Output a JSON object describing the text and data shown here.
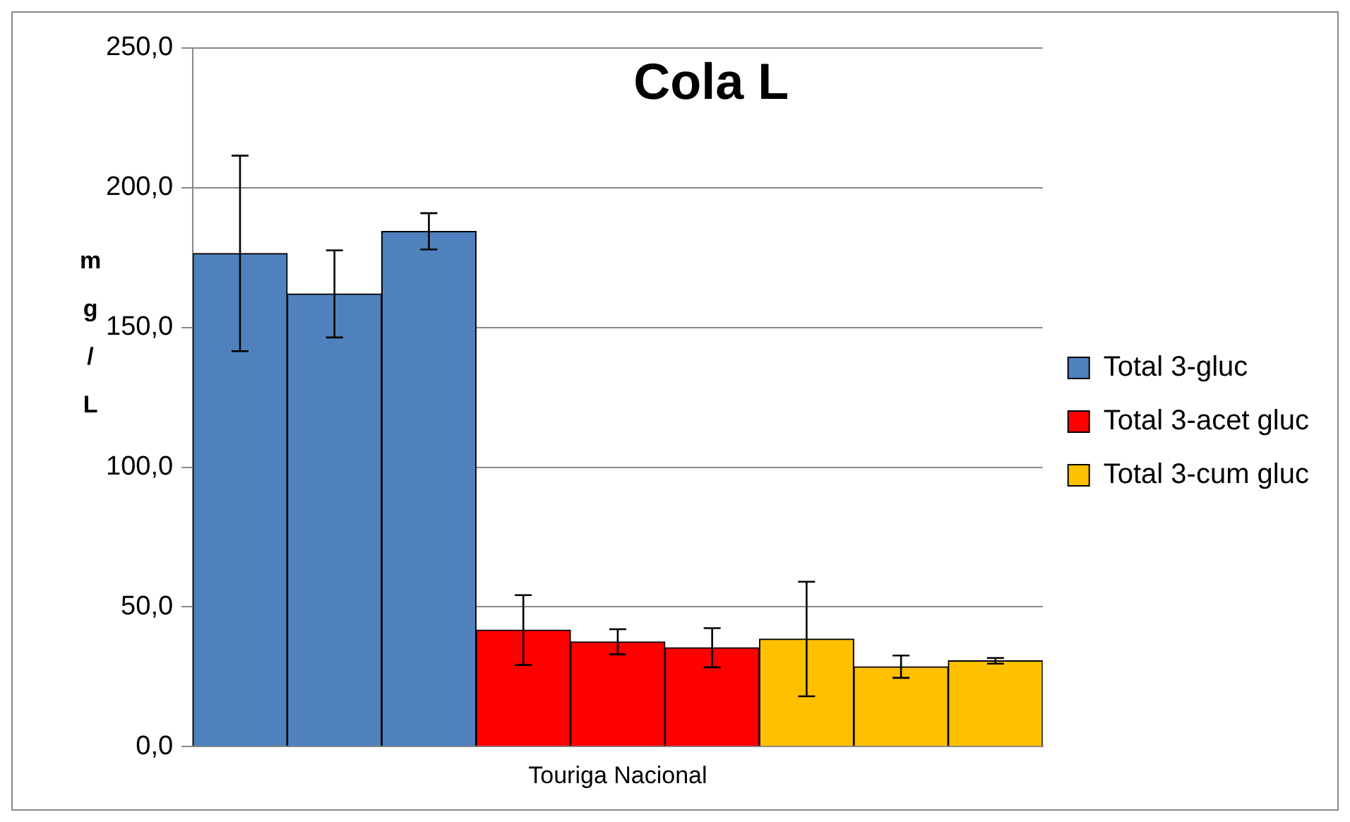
{
  "chart_data": {
    "type": "bar",
    "title": "Cola L",
    "ylabel": "mg/L",
    "categories": [
      null,
      null,
      null,
      null,
      "Touriga Nacional",
      null,
      null,
      null,
      null
    ],
    "stacked": true,
    "series": [
      {
        "name": "Total 3-gluc",
        "color": "#4f81bd",
        "values": [
          176.5,
          162.0,
          184.4,
          null,
          null,
          null,
          null,
          null,
          null
        ],
        "errors": [
          35.0,
          15.6,
          6.5,
          null,
          null,
          null,
          null,
          null,
          null
        ]
      },
      {
        "name": "Total 3-acet gluc",
        "color": "#ff0000",
        "values": [
          null,
          null,
          null,
          41.7,
          37.5,
          35.4,
          null,
          null,
          null
        ],
        "errors": [
          null,
          null,
          null,
          12.5,
          4.5,
          7.0,
          null,
          null,
          null
        ]
      },
      {
        "name": "Total 3-cum gluc",
        "color": "#ffc000",
        "values": [
          null,
          null,
          null,
          null,
          null,
          null,
          38.5,
          28.6,
          30.7
        ],
        "errors": [
          null,
          null,
          null,
          null,
          null,
          null,
          20.5,
          4.0,
          1.0
        ]
      }
    ],
    "ylim": [
      0,
      250
    ],
    "yticks": [
      {
        "value": 0,
        "label": "0,0"
      },
      {
        "value": 50,
        "label": "50,0"
      },
      {
        "value": 100,
        "label": "100,0"
      },
      {
        "value": 150,
        "label": "150,0"
      },
      {
        "value": 200,
        "label": "200,0"
      },
      {
        "value": 250,
        "label": "250,0"
      }
    ],
    "grid": "y",
    "legend": "right"
  }
}
